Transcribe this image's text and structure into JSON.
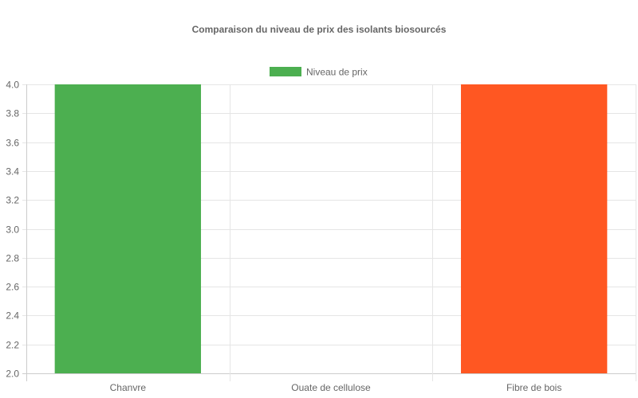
{
  "chart_data": {
    "type": "bar",
    "title": "Comparaison du niveau de prix des isolants biosourcés",
    "categories": [
      "Chanvre",
      "Ouate de cellulose",
      "Fibre de bois"
    ],
    "series": [
      {
        "name": "Niveau de prix",
        "values": [
          4,
          2,
          4
        ],
        "colors": [
          "#4CAF50",
          "#FFC107",
          "#FF5722"
        ]
      }
    ],
    "legend": {
      "position": "top",
      "color": "#4CAF50"
    },
    "ylim": [
      2.0,
      4.0
    ],
    "yticks": [
      "2.0",
      "2.2",
      "2.4",
      "2.6",
      "2.8",
      "3.0",
      "3.2",
      "3.4",
      "3.6",
      "3.8",
      "4.0"
    ],
    "grid": true,
    "xlabel": "",
    "ylabel": ""
  }
}
